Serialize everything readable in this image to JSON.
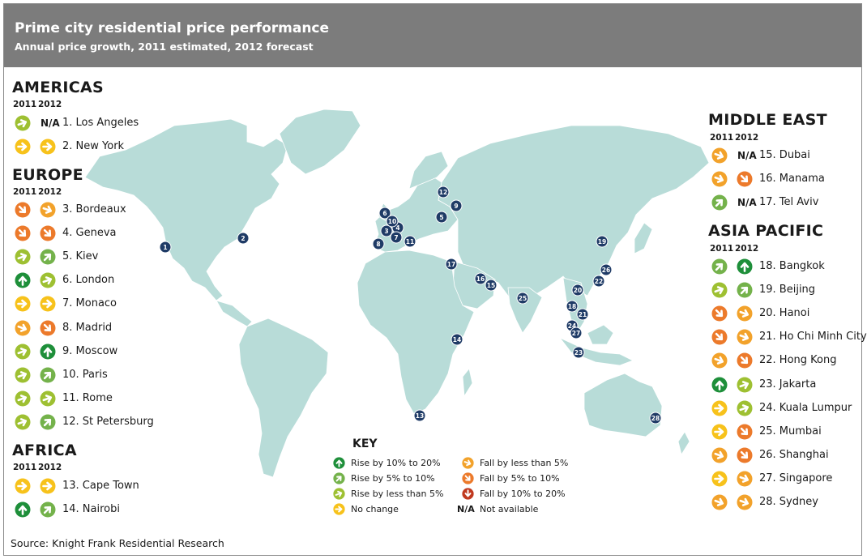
{
  "header": {
    "title": "Prime city residential price performance",
    "subtitle": "Annual price growth, 2011 estimated, 2012 forecast"
  },
  "colors": {
    "header_bg": "#7c7c7c",
    "land": "#b8dcd8",
    "marker": "#1f3b66",
    "rise_10_20": "#1e8f3a",
    "rise_5_10": "#74b24b",
    "rise_lt5": "#9ec032",
    "no_change": "#f7c21b",
    "fall_lt5": "#f2a22b",
    "fall_5_10": "#ec7a2b",
    "fall_10_20": "#c0391f"
  },
  "year_labels": {
    "y2011": "2011",
    "y2012": "2012"
  },
  "regions": {
    "americas": {
      "title": "AMERICAS",
      "cities": [
        {
          "label": "1. Los Angeles",
          "y2011": "rise_lt5",
          "y2012": "na"
        },
        {
          "label": "2. New York",
          "y2011": "no_change",
          "y2012": "no_change"
        }
      ]
    },
    "europe": {
      "title": "EUROPE",
      "cities": [
        {
          "label": "3. Bordeaux",
          "y2011": "fall_5_10",
          "y2012": "fall_lt5"
        },
        {
          "label": "4. Geneva",
          "y2011": "fall_5_10",
          "y2012": "fall_5_10"
        },
        {
          "label": "5. Kiev",
          "y2011": "rise_lt5",
          "y2012": "rise_5_10"
        },
        {
          "label": "6. London",
          "y2011": "rise_10_20",
          "y2012": "rise_lt5"
        },
        {
          "label": "7. Monaco",
          "y2011": "no_change",
          "y2012": "no_change"
        },
        {
          "label": "8. Madrid",
          "y2011": "fall_lt5",
          "y2012": "fall_5_10"
        },
        {
          "label": "9. Moscow",
          "y2011": "rise_lt5",
          "y2012": "rise_10_20"
        },
        {
          "label": "10. Paris",
          "y2011": "rise_lt5",
          "y2012": "rise_5_10"
        },
        {
          "label": "11. Rome",
          "y2011": "rise_lt5",
          "y2012": "rise_lt5"
        },
        {
          "label": "12. St Petersburg",
          "y2011": "rise_lt5",
          "y2012": "rise_5_10"
        }
      ]
    },
    "africa": {
      "title": "AFRICA",
      "cities": [
        {
          "label": "13. Cape Town",
          "y2011": "no_change",
          "y2012": "no_change"
        },
        {
          "label": "14. Nairobi",
          "y2011": "rise_10_20",
          "y2012": "rise_5_10"
        }
      ]
    },
    "middle_east": {
      "title": "MIDDLE EAST",
      "cities": [
        {
          "label": "15. Dubai",
          "y2011": "fall_lt5",
          "y2012": "na"
        },
        {
          "label": "16. Manama",
          "y2011": "fall_lt5",
          "y2012": "fall_5_10"
        },
        {
          "label": "17. Tel Aviv",
          "y2011": "rise_5_10",
          "y2012": "na"
        }
      ]
    },
    "asia_pacific": {
      "title": "ASIA PACIFIC",
      "cities": [
        {
          "label": "18. Bangkok",
          "y2011": "rise_5_10",
          "y2012": "rise_10_20"
        },
        {
          "label": "19. Beijing",
          "y2011": "rise_lt5",
          "y2012": "rise_5_10"
        },
        {
          "label": "20. Hanoi",
          "y2011": "fall_5_10",
          "y2012": "fall_lt5"
        },
        {
          "label": "21. Ho Chi Minh City",
          "y2011": "fall_5_10",
          "y2012": "fall_lt5"
        },
        {
          "label": "22. Hong Kong",
          "y2011": "fall_lt5",
          "y2012": "fall_5_10"
        },
        {
          "label": "23. Jakarta",
          "y2011": "rise_10_20",
          "y2012": "rise_lt5"
        },
        {
          "label": "24. Kuala Lumpur",
          "y2011": "no_change",
          "y2012": "rise_lt5"
        },
        {
          "label": "25. Mumbai",
          "y2011": "no_change",
          "y2012": "fall_5_10"
        },
        {
          "label": "26. Shanghai",
          "y2011": "fall_lt5",
          "y2012": "fall_5_10"
        },
        {
          "label": "27. Singapore",
          "y2011": "no_change",
          "y2012": "fall_lt5"
        },
        {
          "label": "28. Sydney",
          "y2011": "fall_lt5",
          "y2012": "fall_lt5"
        }
      ]
    }
  },
  "na_label": "N/A",
  "markers": [
    "1",
    "2",
    "3",
    "4",
    "5",
    "6",
    "7",
    "8",
    "9",
    "10",
    "11",
    "12",
    "13",
    "14",
    "15",
    "16",
    "17",
    "18",
    "19",
    "20",
    "21",
    "22",
    "23",
    "24",
    "25",
    "26",
    "27",
    "28"
  ],
  "key": {
    "title": "KEY",
    "items": [
      {
        "category": "rise_10_20",
        "label": "Rise by 10% to 20%"
      },
      {
        "category": "rise_5_10",
        "label": "Rise by 5% to 10%"
      },
      {
        "category": "rise_lt5",
        "label": "Rise by less than 5%"
      },
      {
        "category": "no_change",
        "label": "No change"
      },
      {
        "category": "fall_lt5",
        "label": "Fall by less than 5%"
      },
      {
        "category": "fall_5_10",
        "label": "Fall by 5% to 10%"
      },
      {
        "category": "fall_10_20",
        "label": "Fall by 10% to 20%"
      },
      {
        "category": "na",
        "label": "Not available",
        "symbol": "N/A"
      }
    ]
  },
  "source": "Source: Knight Frank Residential Research"
}
